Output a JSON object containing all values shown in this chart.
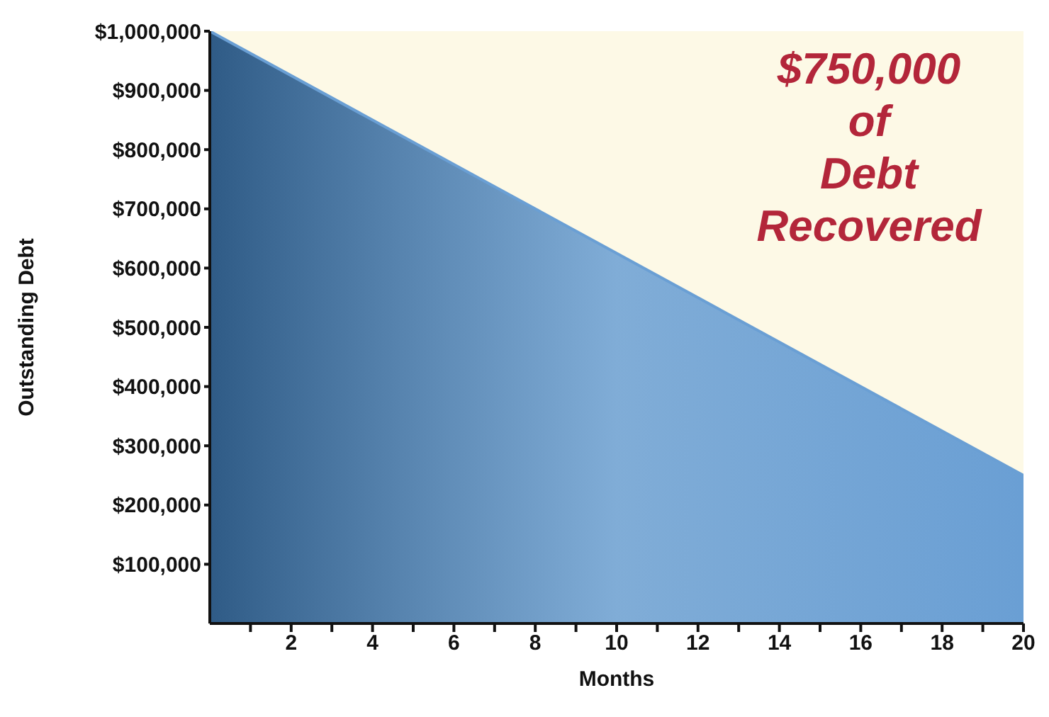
{
  "chart_data": {
    "type": "area",
    "xlabel": "Months",
    "ylabel": "Outstanding Debt",
    "x": [
      0,
      20
    ],
    "series": [
      {
        "color": "#6a9fd4",
        "values": [
          1000000,
          250000
        ]
      }
    ],
    "xlim": [
      0,
      20
    ],
    "xticks": [
      {
        "value": 1,
        "label": null
      },
      2,
      {
        "value": 3,
        "label": null
      },
      4,
      {
        "value": 5,
        "label": null
      },
      6,
      {
        "value": 7,
        "label": null
      },
      8,
      {
        "value": 9,
        "label": null
      },
      10,
      {
        "value": 11,
        "label": null
      },
      12,
      {
        "value": 13,
        "label": null
      },
      14,
      {
        "value": 15,
        "label": null
      },
      16,
      {
        "value": 17,
        "label": null
      },
      18,
      {
        "value": 19,
        "label": null
      },
      20
    ],
    "ylim": [
      0,
      1000000
    ],
    "yticks": [
      {
        "value": 100000,
        "label": "$100,000"
      },
      {
        "value": 200000,
        "label": "$200,000"
      },
      {
        "value": 300000,
        "label": "$300,000"
      },
      {
        "value": 400000,
        "label": "$400,000"
      },
      {
        "value": 500000,
        "label": "$500,000"
      },
      {
        "value": 600000,
        "label": "$600,000"
      },
      {
        "value": 700000,
        "label": "$700,000"
      },
      {
        "value": 800000,
        "label": "$800,000"
      },
      {
        "value": 900000,
        "label": "$900,000"
      },
      {
        "value": 1000000,
        "label": "$1,000,000"
      }
    ],
    "annotations": [
      "$750,000 of Debt Recovered"
    ],
    "grid": false,
    "legend": false
  }
}
